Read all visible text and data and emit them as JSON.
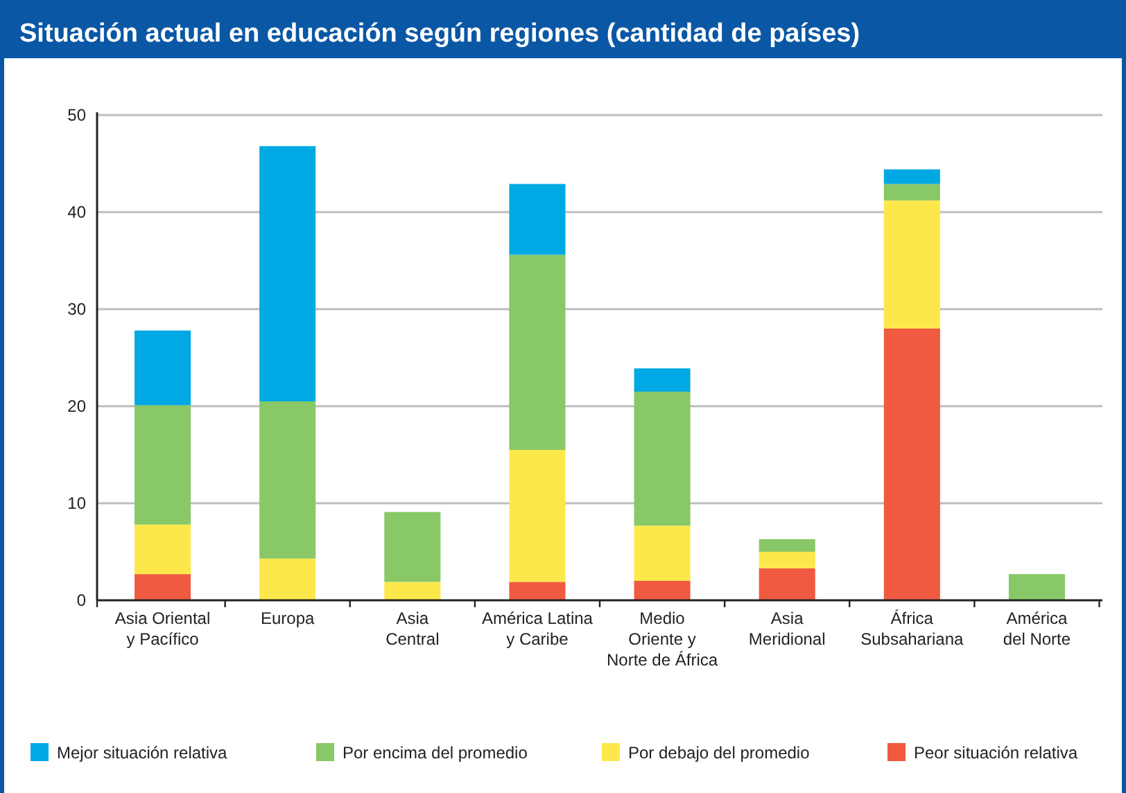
{
  "chart_data": {
    "type": "bar",
    "title": "Situación actual en educación según regiones (cantidad de países)",
    "stacked": true,
    "categories": [
      "Asia Oriental\ny Pacífico",
      "Europa",
      "Asia\nCentral",
      "América Latina\ny Caribe",
      "Medio\nOriente y\nNorte de África",
      "Asia\nMeridional",
      "África\nSubsahariana",
      "América\ndel Norte"
    ],
    "series": [
      {
        "name": "Peor situación relativa",
        "color": "#ef5a40",
        "values": [
          2.7,
          null,
          null,
          1.9,
          2.0,
          3.3,
          28.0,
          null
        ]
      },
      {
        "name": "Por debajo del promedio",
        "color": "#fde84b",
        "values": [
          5.1,
          4.3,
          1.9,
          13.6,
          5.7,
          1.7,
          13.2,
          null
        ]
      },
      {
        "name": "Por encima del promedio",
        "color": "#88c866",
        "values": [
          12.3,
          16.2,
          7.2,
          20.1,
          13.8,
          1.3,
          1.7,
          2.7
        ]
      },
      {
        "name": "Mejor situación relativa",
        "color": "#00a9e4",
        "values": [
          7.7,
          26.3,
          null,
          7.3,
          2.4,
          null,
          1.5,
          null
        ]
      }
    ],
    "ylim": [
      0,
      50
    ],
    "yticks": [
      0,
      10,
      20,
      30,
      40,
      50
    ],
    "grid": "y",
    "legend": "bottom"
  }
}
